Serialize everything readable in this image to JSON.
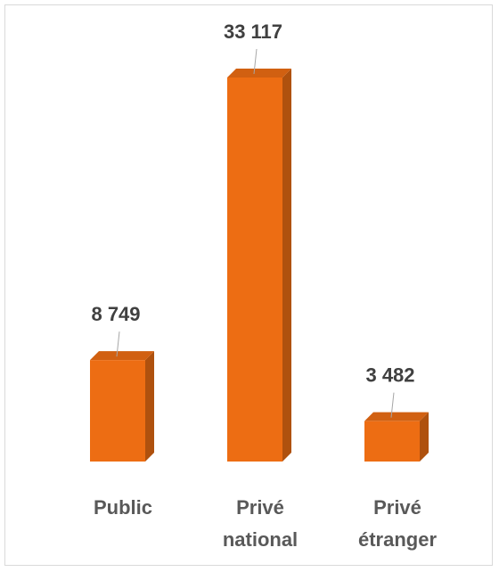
{
  "chart_data": {
    "type": "bar3d",
    "categories": [
      "Public",
      "Privé national",
      "Privé étranger"
    ],
    "values": [
      8749,
      33117,
      3482
    ],
    "value_labels": [
      "8 749",
      "33 117",
      "3 482"
    ],
    "color": "#ed6d13"
  }
}
